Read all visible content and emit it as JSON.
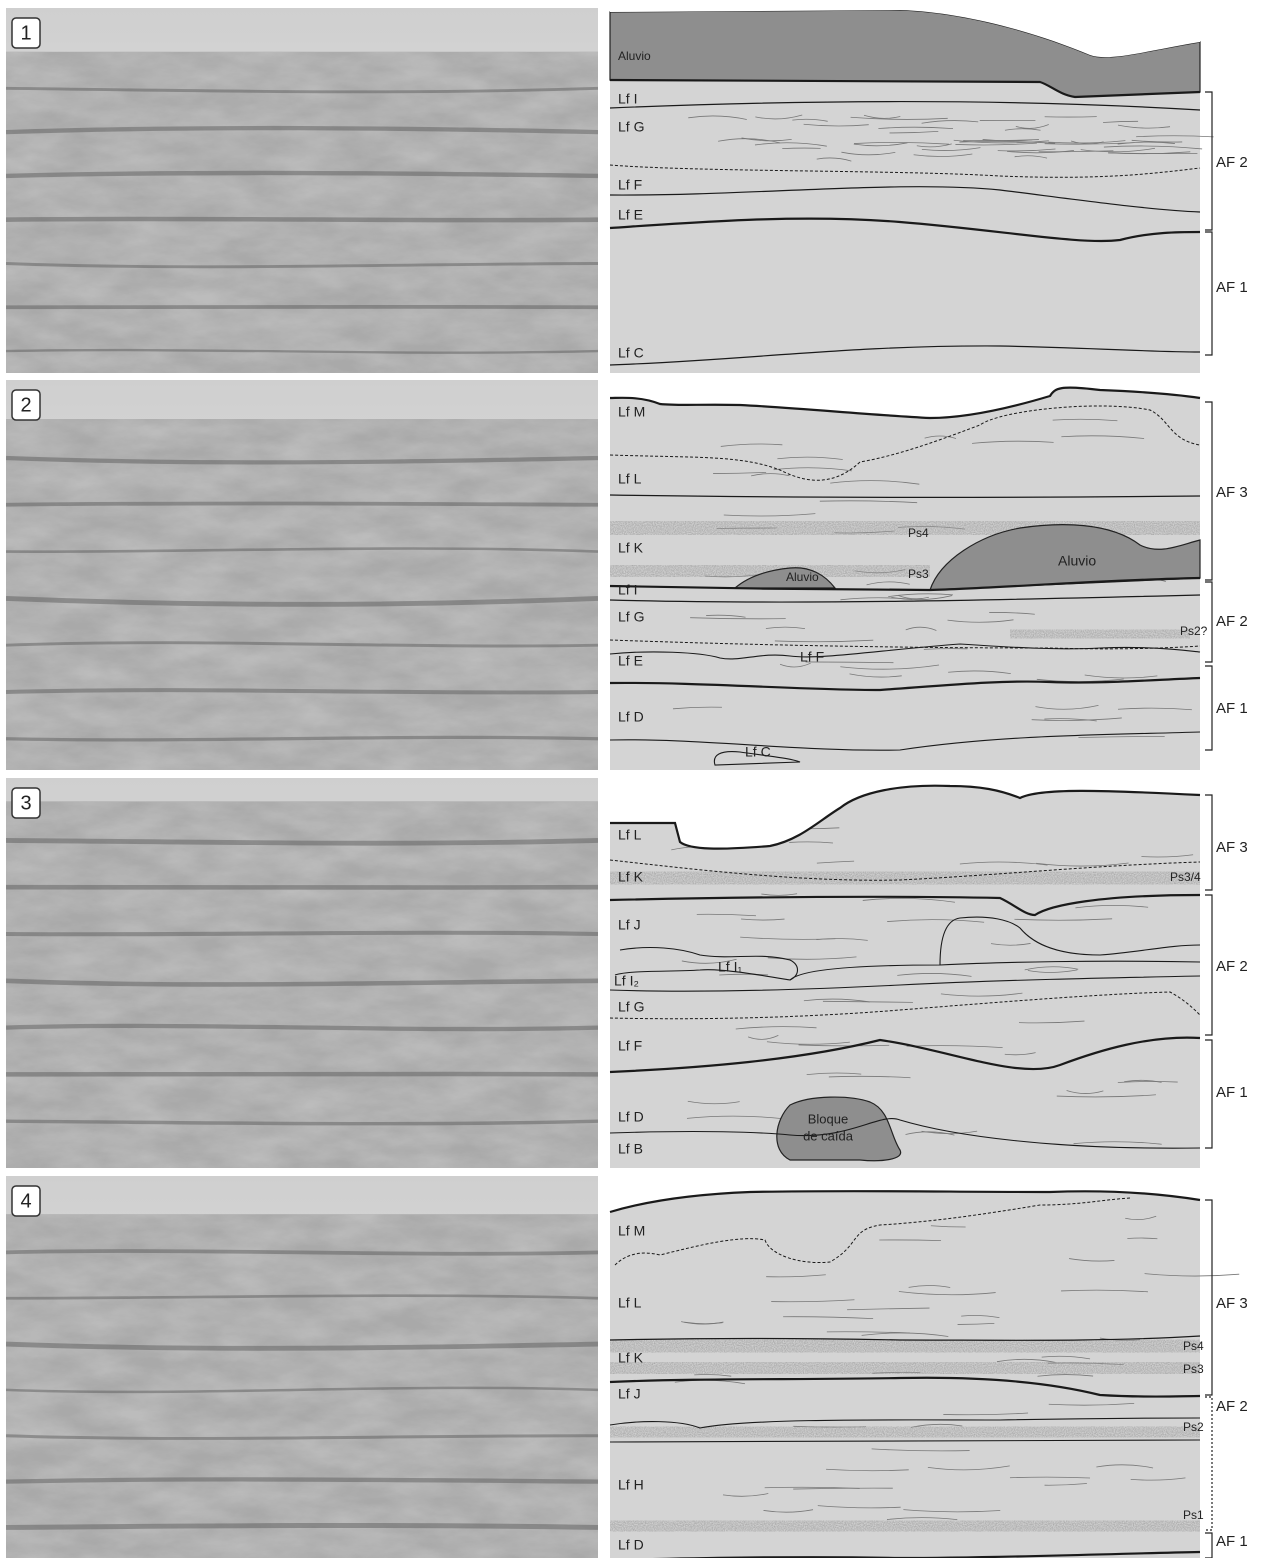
{
  "panels": [
    {
      "number": "1",
      "labels": [
        "Aluvio",
        "Lf I",
        "Lf G",
        "Lf F",
        "Lf E",
        "Lf C"
      ],
      "units": [
        "AF 2",
        "AF 1"
      ]
    },
    {
      "number": "2",
      "labels": [
        "Lf M",
        "Lf L",
        "Ps4",
        "Lf K",
        "Aluvio",
        "Ps3",
        "Aluvio",
        "Lf I",
        "Lf G",
        "Ps2?",
        "Lf F",
        "Lf E",
        "Lf D",
        "Lf C"
      ],
      "units": [
        "AF 3",
        "AF 2",
        "AF 1"
      ]
    },
    {
      "number": "3",
      "labels": [
        "Lf L",
        "Lf K",
        "Ps3/4",
        "Lf J",
        "Lf I₁",
        "Lf I₂",
        "Lf G",
        "Lf F",
        "Lf D",
        "Bloque",
        "de caída",
        "Lf B"
      ],
      "units": [
        "AF 3",
        "AF 2",
        "AF 1"
      ]
    },
    {
      "number": "4",
      "labels": [
        "Lf M",
        "Lf L",
        "Ps4",
        "Lf K",
        "Ps3",
        "Lf J",
        "Ps2",
        "Lf H",
        "Ps1",
        "Lf D"
      ],
      "units": [
        "AF 3",
        "AF 2",
        "AF 1"
      ]
    }
  ]
}
